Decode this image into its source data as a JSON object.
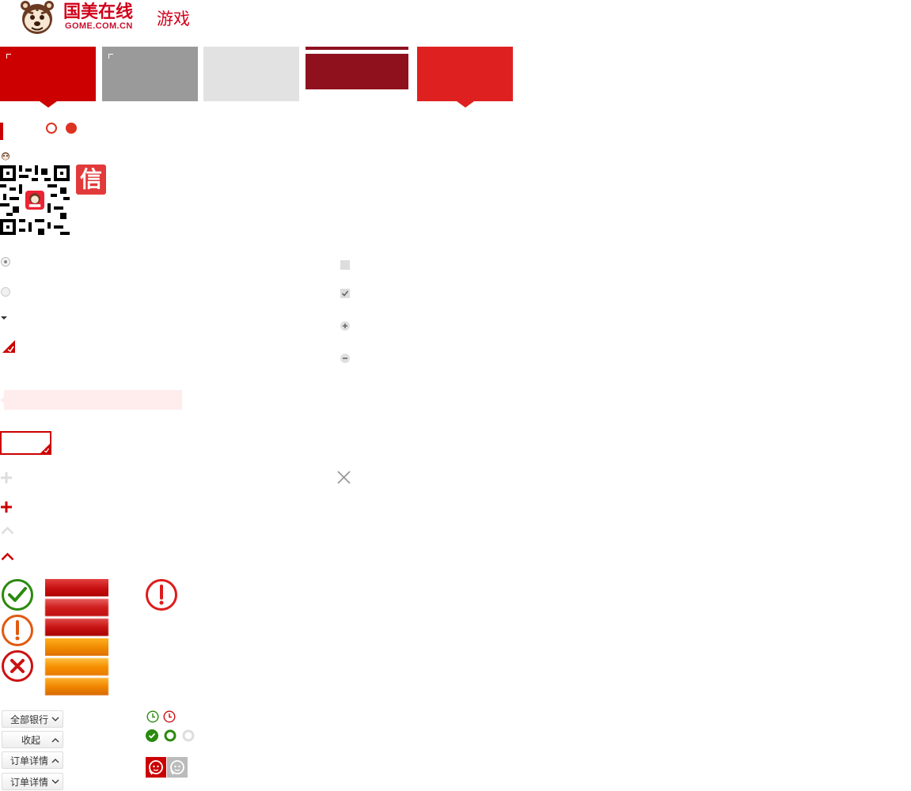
{
  "header": {
    "logo_cn": "国美在线",
    "logo_en": "GOME.COM.CN",
    "channel": "游戏"
  },
  "colors": {
    "brand_red": "#cc0000",
    "tab_gray": "#9a9a9a",
    "tab_light": "#e2e2e2",
    "tab_dark_red": "#8f111e",
    "tab_bright_red": "#df2020",
    "success_green": "#2a8a0e",
    "warning_orange": "#e05a10",
    "error_red": "#cc1111"
  },
  "icons": {
    "logo": "tiger-mascot-icon",
    "qr": "qr-code-icon",
    "weibo": "xin-stamp-icon",
    "success": "check-circle-icon",
    "warning": "exclamation-circle-icon",
    "error": "x-circle-icon",
    "clock": "clock-icon",
    "close": "close-icon",
    "plus": "plus-icon",
    "chevron": "chevron-up-icon",
    "service": "customer-service-icon"
  },
  "buttons": {
    "all_banks": "全部银行",
    "collapse": "收起",
    "order_details_up": "订单详情",
    "order_details_down": "订单详情"
  },
  "qr_badge": "信"
}
